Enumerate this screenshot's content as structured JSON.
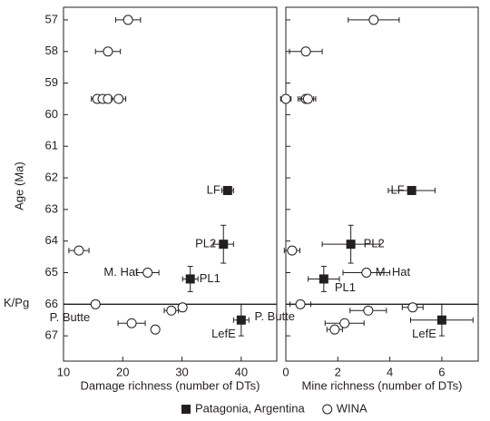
{
  "chart_data": [
    {
      "type": "scatter",
      "xlabel": "Damage richness (number of DTs)",
      "ylabel": "Age (Ma)",
      "xlim": [
        10,
        46
      ],
      "xticks": [
        10,
        20,
        30,
        40
      ],
      "ylim": [
        67.8,
        56.6
      ],
      "yticks": [
        57,
        58,
        59,
        60,
        61,
        62,
        63,
        64,
        65,
        66,
        67
      ],
      "hline": {
        "value": 66,
        "label": "K/Pg"
      },
      "series": [
        {
          "name": "Patagonia, Argentina",
          "marker": "square",
          "color": "#231f20",
          "x": [
            37.7,
            37.0,
            31.4,
            40.0
          ],
          "y": [
            62.4,
            64.1,
            65.2,
            66.5
          ],
          "xerr": [
            1.0,
            1.7,
            1.3,
            1.3
          ],
          "yerr": [
            null,
            0.6,
            0.4,
            0.5
          ],
          "labels": [
            "LF",
            "PL2",
            "PL1",
            "LefE"
          ]
        },
        {
          "name": "WINA",
          "marker": "circle",
          "color": "#231f20",
          "x": [
            20.9,
            17.5,
            15.7,
            16.6,
            17.5,
            19.3,
            12.6,
            24.2,
            15.4,
            28.2,
            30.1,
            21.5,
            25.5
          ],
          "y": [
            57,
            58,
            59.5,
            59.5,
            59.5,
            59.5,
            64.3,
            65.0,
            66.0,
            66.2,
            66.1,
            66.6,
            66.8
          ],
          "xerr": [
            2.1,
            2.1,
            1.0,
            0.5,
            0.5,
            1.2,
            1.7,
            1.9,
            0.6,
            1.2,
            0.6,
            2.3,
            null
          ],
          "labels": [
            null,
            null,
            null,
            null,
            null,
            null,
            null,
            "M. Hat",
            "P. Butte",
            null,
            null,
            null,
            null
          ]
        }
      ]
    },
    {
      "type": "scatter",
      "xlabel": "Mine richness (number of DTs)",
      "xlim": [
        0,
        7.4
      ],
      "xticks": [
        0,
        2,
        4,
        6
      ],
      "ylim": [
        67.8,
        56.6
      ],
      "yticks": [
        57,
        58,
        59,
        60,
        61,
        62,
        63,
        64,
        65,
        66,
        67
      ],
      "hline": {
        "value": 66
      },
      "series": [
        {
          "marker": "square",
          "color": "#231f20",
          "x": [
            4.84,
            2.5,
            1.46,
            6.0
          ],
          "y": [
            62.4,
            64.1,
            65.2,
            66.5
          ],
          "xerr": [
            0.9,
            1.1,
            0.6,
            1.2
          ],
          "yerr": [
            null,
            0.6,
            0.4,
            0.5
          ],
          "labels": [
            "LF",
            "PL2",
            "PL1",
            "LefE"
          ]
        },
        {
          "marker": "circle",
          "color": "#231f20",
          "x": [
            3.38,
            0.77,
            0.0,
            0.77,
            0.85,
            0.24,
            3.1,
            0.56,
            3.17,
            4.88,
            2.26,
            1.88
          ],
          "y": [
            57,
            58,
            59.5,
            59.5,
            59.5,
            64.3,
            65.0,
            66.0,
            66.2,
            66.1,
            66.6,
            66.8
          ],
          "xerr": [
            0.98,
            0.63,
            0.2,
            0.3,
            0.3,
            0.3,
            0.9,
            0.4,
            0.7,
            0.4,
            0.75,
            0.3
          ],
          "labels": [
            null,
            null,
            null,
            null,
            null,
            null,
            "M. Hat",
            "P. Butte",
            null,
            null,
            null,
            null
          ]
        }
      ]
    }
  ]
}
